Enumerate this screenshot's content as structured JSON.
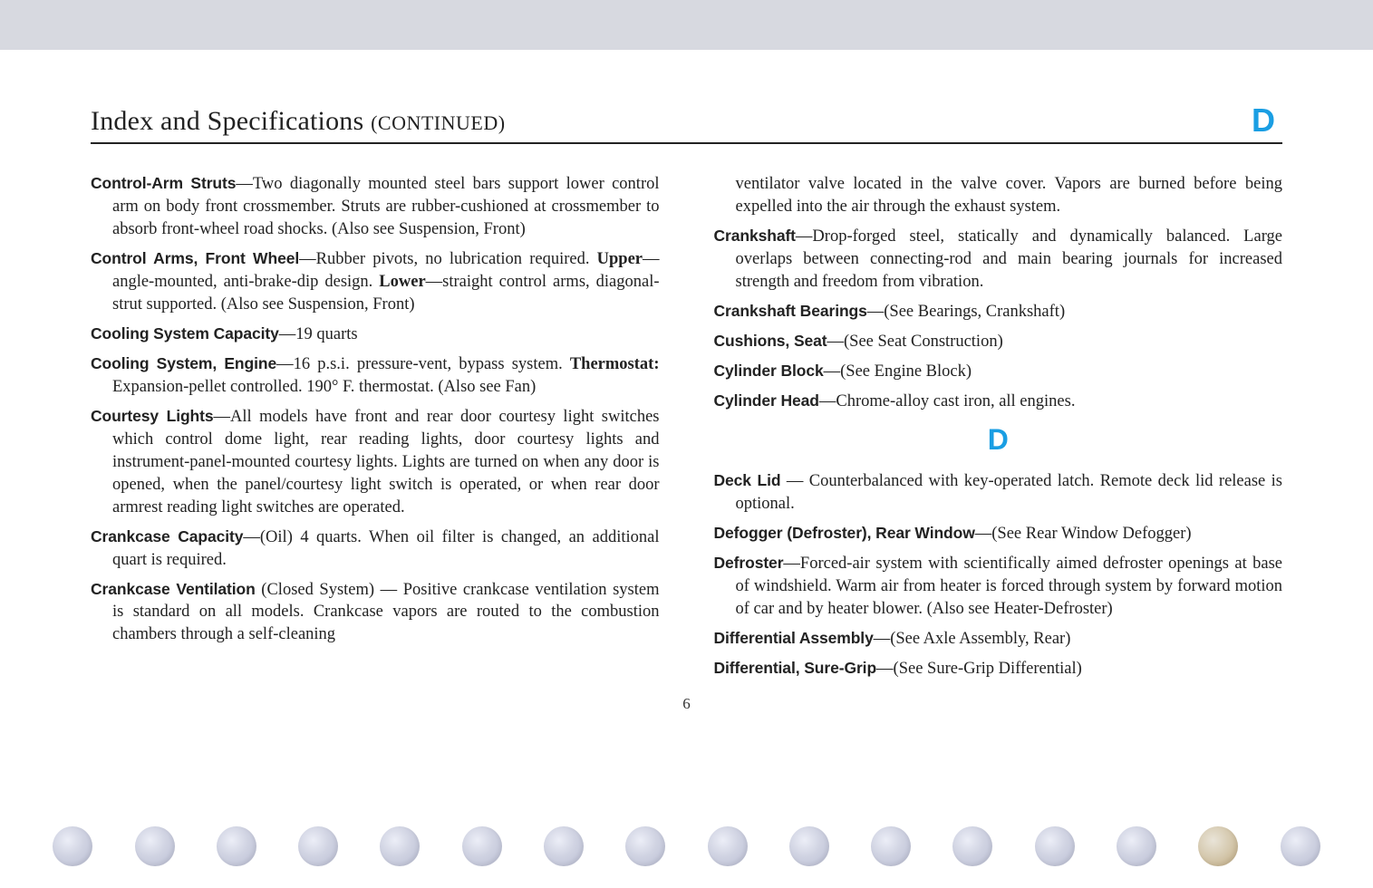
{
  "header": {
    "title_main": "Index and Specifications ",
    "title_cont": "(CONTINUED)",
    "section_letter_top": "D"
  },
  "left_column": {
    "e0_term": "Control-Arm Struts",
    "e0_body": "—Two diagonally mounted steel bars support lower control arm on body front crossmember. Struts are rubber-cushioned at crossmember to absorb front-wheel road shocks. (Also see Suspension, Front)",
    "e1_term": "Control Arms, Front Wheel",
    "e1_body_a": "—Rubber pivots, no lubrication required. ",
    "e1_upper": "Upper",
    "e1_body_b": "—angle-mounted, anti-brake-dip design. ",
    "e1_lower": "Lower",
    "e1_body_c": "—straight control arms, diagonal-strut supported. (Also see Suspension, Front)",
    "e2_term": "Cooling System Capacity",
    "e2_body": "—19 quarts",
    "e3_term": "Cooling System, Engine",
    "e3_body_a": "—16 p.s.i. pressure-vent, bypass system. ",
    "e3_thermo": "Thermostat:",
    "e3_body_b": " Expansion-pellet controlled. 190° F. thermostat. (Also see Fan)",
    "e4_term": "Courtesy Lights",
    "e4_body": "—All models have front and rear door courtesy light switches which control dome light, rear reading lights, door courtesy lights and instrument-panel-mounted courtesy lights. Lights are turned on when any door is opened, when the panel/courtesy light switch is operated, or when rear door armrest reading light switches are operated.",
    "e5_term": "Crankcase Capacity",
    "e5_body": "—(Oil) 4 quarts. When oil filter is changed, an additional quart is required.",
    "e6_term": "Crankcase Ventilation",
    "e6_body": " (Closed System) — Positive crankcase ventilation system is standard on all models. Crankcase vapors are routed to the combustion chambers through a self-cleaning"
  },
  "right_column": {
    "cont0": "ventilator valve located in the valve cover. Vapors are burned before being expelled into the air through the exhaust system.",
    "e7_term": "Crankshaft",
    "e7_body": "—Drop-forged steel, statically and dynamically balanced. Large overlaps between connecting-rod and main bearing journals for increased strength and freedom from vibration.",
    "e8_term": "Crankshaft Bearings",
    "e8_body": "—(See Bearings, Crankshaft)",
    "e9_term": "Cushions, Seat",
    "e9_body": "—(See Seat Construction)",
    "e10_term": "Cylinder Block",
    "e10_body": "—(See Engine Block)",
    "e11_term": "Cylinder Head",
    "e11_body": "—Chrome-alloy cast iron, all engines.",
    "section_letter_d": "D",
    "e12_term": "Deck Lid",
    "e12_body": " — Counterbalanced with key-operated latch. Remote deck lid release is optional.",
    "e13_term": "Defogger (Defroster), Rear Window",
    "e13_body": "—(See Rear Window Defogger)",
    "e14_term": "Defroster",
    "e14_body": "—Forced-air system with scientifically aimed defroster openings at base of windshield. Warm air from heater is forced through system by forward motion of car and by heater blower. (Also see Heater-Defroster)",
    "e15_term": "Differential Assembly",
    "e15_body": "—(See Axle Assembly, Rear)",
    "e16_term": "Differential, Sure-Grip",
    "e16_body": "—(See Sure-Grip Differential)"
  },
  "page_number": "6",
  "punch_holes": {
    "count": 16,
    "brown_index": 14,
    "color_normal": "#c8ccde",
    "color_brown": "#c9b490"
  },
  "styles": {
    "body_font_size_pt": 14,
    "term_font_family": "Arial",
    "section_letter_color": "#1a9ee3",
    "rule_color": "#222222",
    "top_band_color": "#d7d9e0",
    "background_color": "#ffffff"
  }
}
